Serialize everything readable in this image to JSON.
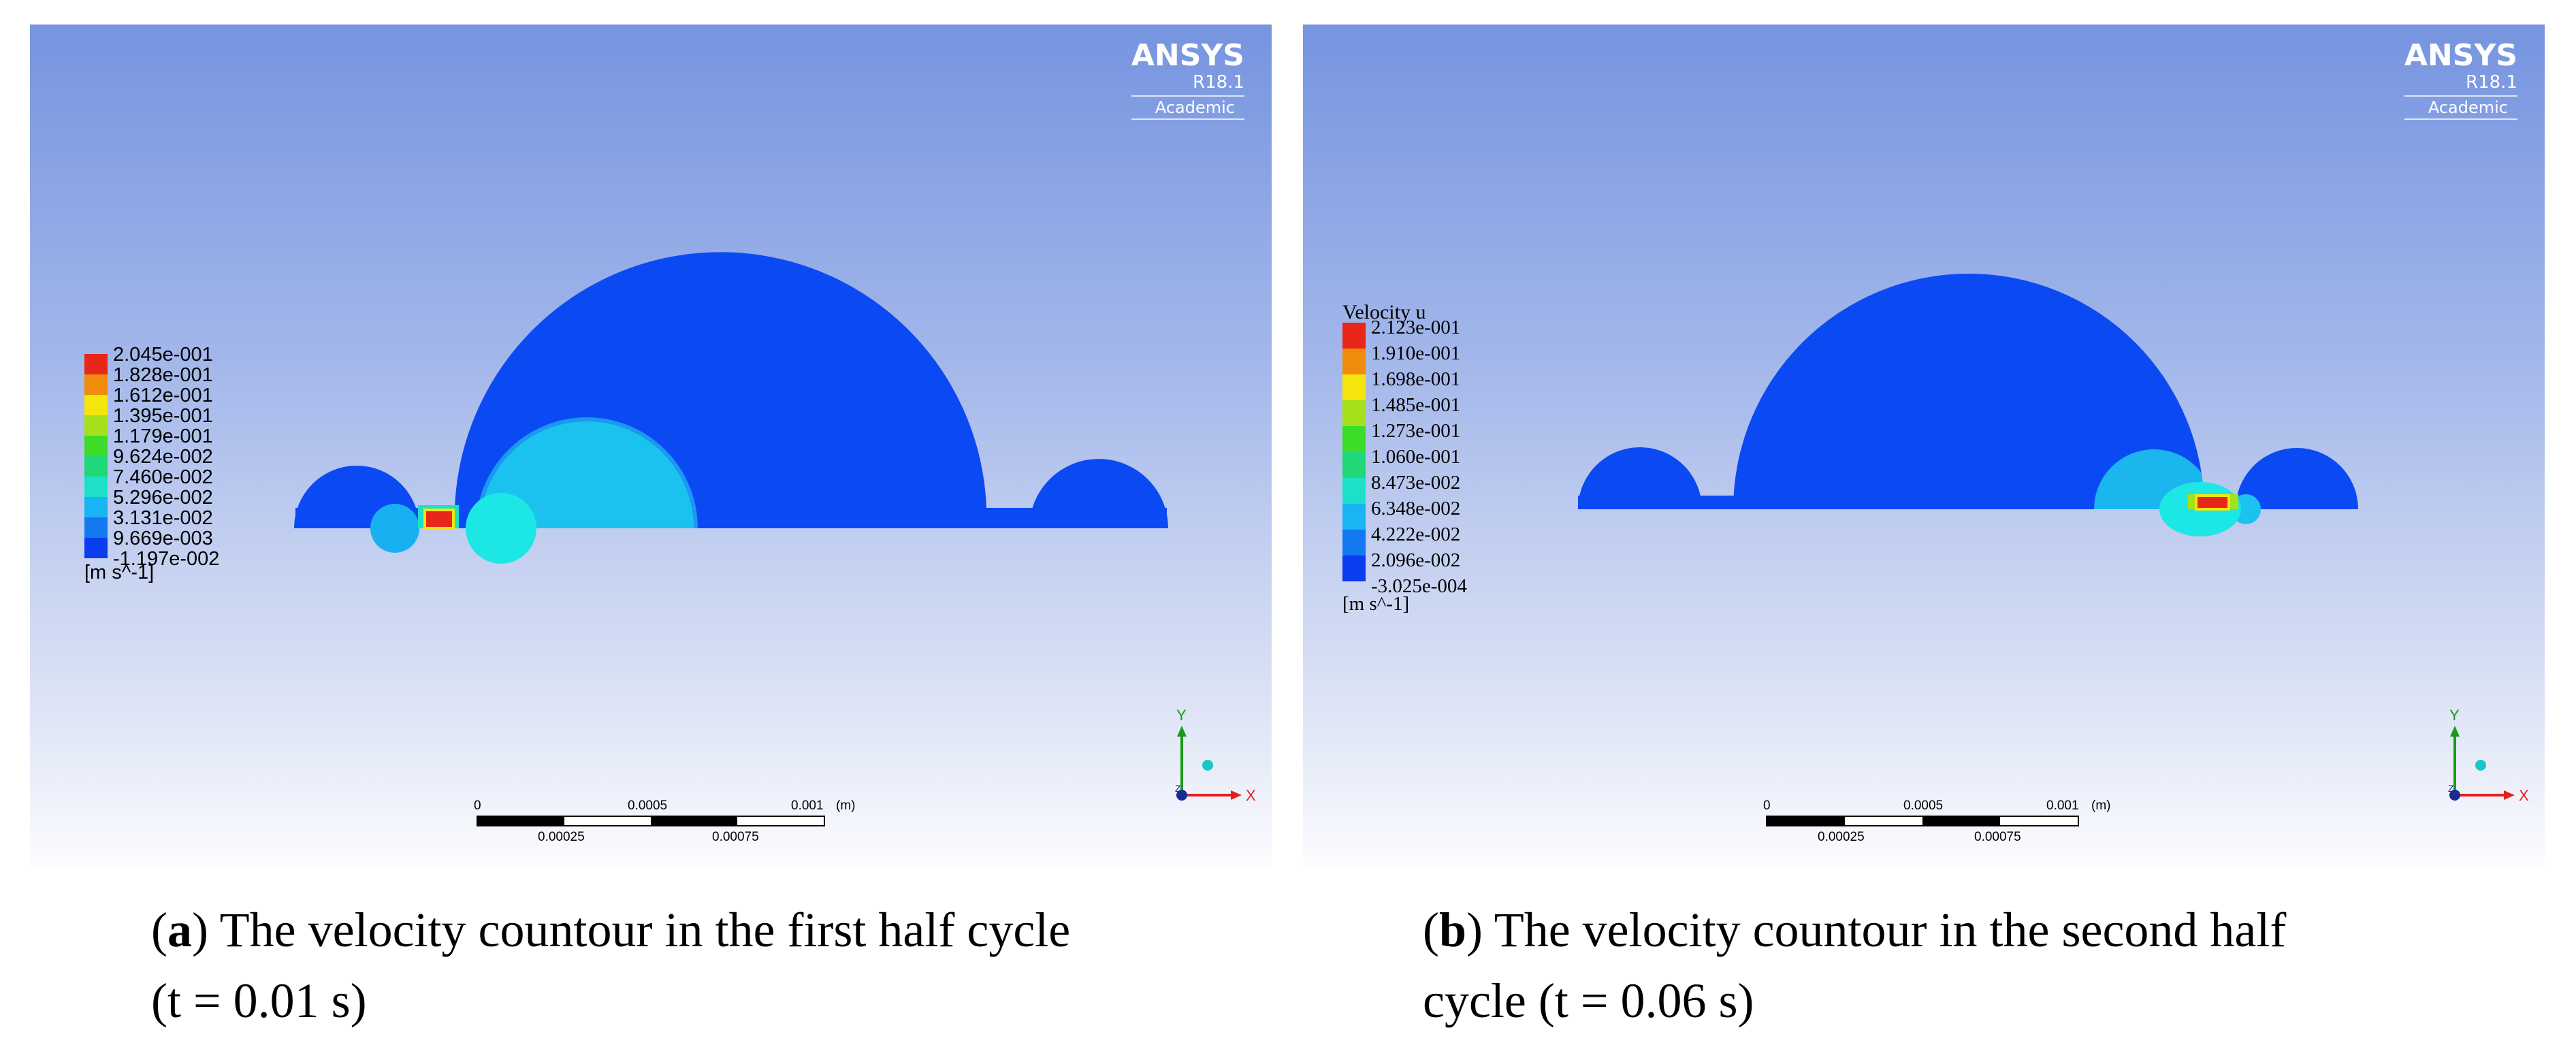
{
  "panels": [
    {
      "id": "a",
      "brand": {
        "name": "ANSYS",
        "version": "R18.1",
        "edition": "Academic"
      },
      "legend": {
        "title": "",
        "labels": [
          "2.045e-001",
          "1.828e-001",
          "1.612e-001",
          "1.395e-001",
          "1.179e-001",
          "9.624e-002",
          "7.460e-002",
          "5.296e-002",
          "3.131e-002",
          "9.669e-003",
          "-1.197e-002"
        ],
        "unit": "[m s^-1]"
      },
      "scale_bar": {
        "top_labels": [
          "0",
          "0.0005",
          "0.001",
          "(m)"
        ],
        "bottom_labels": [
          "0.00025",
          "0.00075"
        ]
      },
      "axes": {
        "y": "Y",
        "x": "X",
        "z": "Z"
      },
      "caption": {
        "letter": "a",
        "text": "The velocity countour in the first half cycle",
        "line2": "(t = 0.01 s)"
      }
    },
    {
      "id": "b",
      "brand": {
        "name": "ANSYS",
        "version": "R18.1",
        "edition": "Academic"
      },
      "legend": {
        "title": "Velocity u",
        "labels": [
          "2.123e-001",
          "1.910e-001",
          "1.698e-001",
          "1.485e-001",
          "1.273e-001",
          "1.060e-001",
          "8.473e-002",
          "6.348e-002",
          "4.222e-002",
          "2.096e-002",
          "-3.025e-004"
        ],
        "unit": "[m s^-1]"
      },
      "scale_bar": {
        "top_labels": [
          "0",
          "0.0005",
          "0.001",
          "(m)"
        ],
        "bottom_labels": [
          "0.00025",
          "0.00075"
        ]
      },
      "axes": {
        "y": "Y",
        "x": "X",
        "z": "Z"
      },
      "caption": {
        "letter": "b",
        "text": "The velocity countour in the second half",
        "line2": "cycle (t = 0.06 s)"
      }
    }
  ],
  "legend_colors": [
    "#e8261a",
    "#f08c0c",
    "#f4e50c",
    "#a5e01c",
    "#3ddc28",
    "#20d878",
    "#1ce0c8",
    "#18b4f4",
    "#1478f0",
    "#0a3cf0"
  ],
  "contour_colors": {
    "background_level": "#0b4af2",
    "mid_level": "#1bc2f0",
    "high_level": "#e8261a"
  }
}
